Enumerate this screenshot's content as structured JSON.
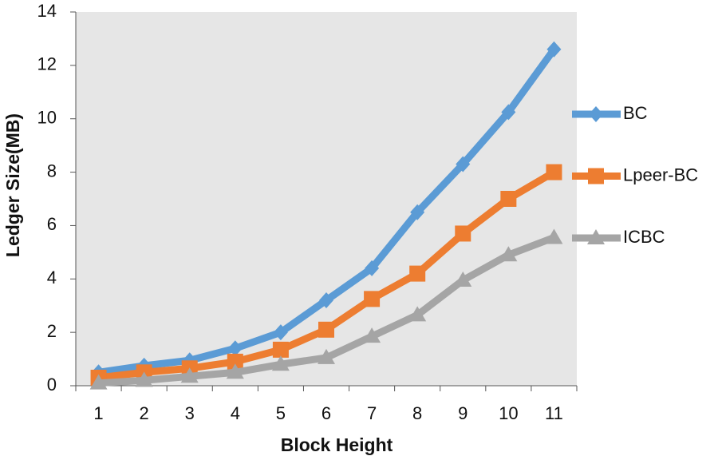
{
  "chart_data": {
    "type": "line",
    "x_label": "Block Height",
    "y_label": "Ledger Size(MB)",
    "categories": [
      "1",
      "2",
      "3",
      "4",
      "5",
      "6",
      "7",
      "8",
      "9",
      "10",
      "11"
    ],
    "series": [
      {
        "name": "BC",
        "color": "#5b9bd5",
        "marker": "diamond",
        "values": [
          0.5,
          0.75,
          0.95,
          1.4,
          2.0,
          3.2,
          4.4,
          6.5,
          8.3,
          10.25,
          12.6
        ]
      },
      {
        "name": "Lpeer-BC",
        "color": "#ed7d31",
        "marker": "square",
        "values": [
          0.3,
          0.5,
          0.65,
          0.9,
          1.35,
          2.1,
          3.25,
          4.2,
          5.7,
          7.0,
          8.0
        ]
      },
      {
        "name": "ICBC",
        "color": "#a5a5a5",
        "marker": "triangle",
        "values": [
          0.1,
          0.2,
          0.35,
          0.5,
          0.8,
          1.05,
          1.85,
          2.65,
          3.95,
          4.9,
          5.55
        ]
      }
    ],
    "ylim": [
      0,
      14
    ],
    "yticks": [
      0,
      2,
      4,
      6,
      8,
      10,
      12,
      14
    ],
    "grid": false,
    "plot_background": "#e6e6e6",
    "legend": "right"
  }
}
